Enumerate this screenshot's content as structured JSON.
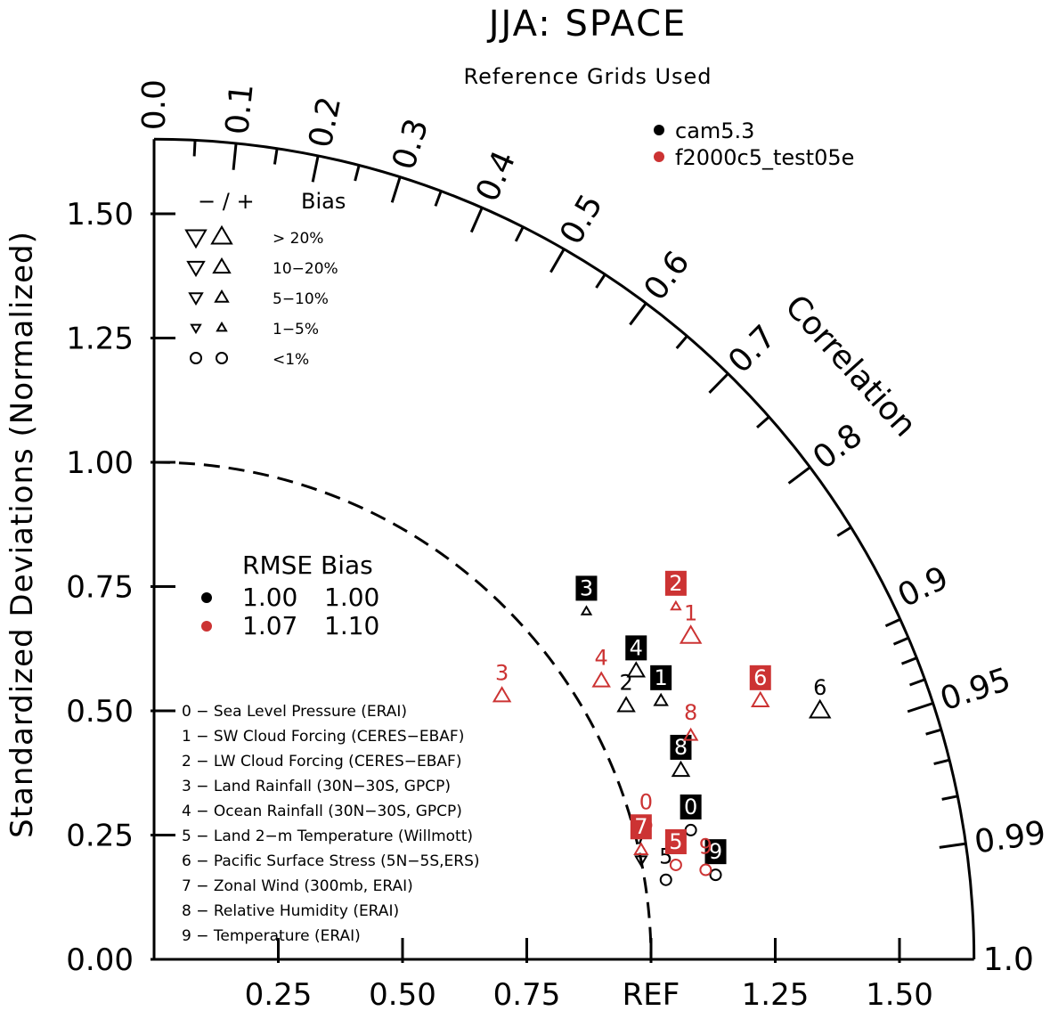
{
  "title": "JJA: SPACE",
  "subtitle": "Reference Grids Used",
  "colors": {
    "black": "#000000",
    "red": "#cc3333"
  },
  "ylabel": "Standardized Deviations (Normalized)",
  "y_ticks": [
    "0.00",
    "0.25",
    "0.50",
    "0.75",
    "1.00",
    "1.25",
    "1.50"
  ],
  "x_ticks": [
    "0.25",
    "0.50",
    "0.75",
    "REF",
    "1.25",
    "1.50"
  ],
  "correlation_label": "Correlation",
  "corr_labels": [
    {
      "r": 0.0,
      "text": "0.0"
    },
    {
      "r": 0.1,
      "text": "0.1"
    },
    {
      "r": 0.2,
      "text": "0.2"
    },
    {
      "r": 0.3,
      "text": "0.3"
    },
    {
      "r": 0.4,
      "text": "0.4"
    },
    {
      "r": 0.5,
      "text": "0.5"
    },
    {
      "r": 0.6,
      "text": "0.6"
    },
    {
      "r": 0.7,
      "text": "0.7"
    },
    {
      "r": 0.8,
      "text": "0.8"
    },
    {
      "r": 0.9,
      "text": "0.9"
    },
    {
      "r": 0.95,
      "text": "0.95"
    },
    {
      "r": 0.99,
      "text": "0.99"
    },
    {
      "r": 1.0,
      "text": "1.0"
    }
  ],
  "model_legend": [
    {
      "name": "cam5.3",
      "color": "#000000"
    },
    {
      "name": "f2000c5_test05e",
      "color": "#cc3333"
    }
  ],
  "bias_legend": {
    "header": "− / +",
    "header_label": "Bias",
    "rows": [
      "> 20%",
      "10−20%",
      "5−10%",
      "1−5%",
      "<1%"
    ]
  },
  "rmse_table": {
    "header": "RMSE Bias",
    "rows": [
      {
        "color": "#000000",
        "rmse": "1.00",
        "bias": "1.00"
      },
      {
        "color": "#cc3333",
        "rmse": "1.07",
        "bias": "1.10"
      }
    ]
  },
  "variable_legend": [
    "0 − Sea Level Pressure (ERAI)",
    "1 − SW Cloud Forcing (CERES−EBAF)",
    "2 − LW Cloud Forcing (CERES−EBAF)",
    "3 − Land Rainfall (30N−30S, GPCP)",
    "4 − Ocean Rainfall (30N−30S, GPCP)",
    "5 − Land 2−m Temperature (Willmott)",
    "6 − Pacific Surface Stress (5N−5S,ERS)",
    "7 − Zonal Wind (300mb, ERAI)",
    "8 − Relative Humidity (ERAI)",
    "9 − Temperature (ERAI)"
  ],
  "chart_data": {
    "type": "scatter",
    "title": "JJA: SPACE",
    "subtitle": "Reference Grids Used",
    "ylabel": "Standardized Deviations (Normalized)",
    "xlim": [
      0,
      1.65
    ],
    "ylim": [
      0,
      1.65
    ],
    "x_ticks": [
      0.25,
      0.5,
      0.75,
      1.0,
      1.25,
      1.5
    ],
    "y_ticks": [
      0,
      0.25,
      0.5,
      0.75,
      1.0,
      1.25,
      1.5
    ],
    "ref_arc_radius": 1.0,
    "series": [
      {
        "name": "cam5.3",
        "color": "#000000",
        "points": [
          {
            "id": "0",
            "x": 1.08,
            "y": 0.26,
            "marker": "circle",
            "boxed": true
          },
          {
            "id": "1",
            "x": 1.02,
            "y": 0.52,
            "marker": "tri-up-small",
            "boxed": true
          },
          {
            "id": "2",
            "x": 0.95,
            "y": 0.51,
            "marker": "tri-up",
            "boxed": false
          },
          {
            "id": "3",
            "x": 0.87,
            "y": 0.7,
            "marker": "tri-up-tiny",
            "boxed": true
          },
          {
            "id": "4",
            "x": 0.97,
            "y": 0.58,
            "marker": "tri-up",
            "boxed": true
          },
          {
            "id": "5",
            "x": 1.03,
            "y": 0.16,
            "marker": "circle",
            "boxed": false
          },
          {
            "id": "6",
            "x": 1.34,
            "y": 0.5,
            "marker": "tri-up-large",
            "boxed": false
          },
          {
            "id": "7",
            "x": 0.98,
            "y": 0.2,
            "marker": "tri-down-small",
            "boxed": false
          },
          {
            "id": "8",
            "x": 1.06,
            "y": 0.38,
            "marker": "tri-up",
            "boxed": true
          },
          {
            "id": "9",
            "x": 1.13,
            "y": 0.17,
            "marker": "circle",
            "boxed": true
          }
        ]
      },
      {
        "name": "f2000c5_test05e",
        "color": "#cc3333",
        "points": [
          {
            "id": "0",
            "x": 0.99,
            "y": 0.27,
            "marker": "circle",
            "boxed": false
          },
          {
            "id": "1",
            "x": 1.08,
            "y": 0.65,
            "marker": "tri-up-large",
            "boxed": false
          },
          {
            "id": "2",
            "x": 1.05,
            "y": 0.71,
            "marker": "tri-up-tiny",
            "boxed": true
          },
          {
            "id": "3",
            "x": 0.7,
            "y": 0.53,
            "marker": "tri-up",
            "boxed": false
          },
          {
            "id": "4",
            "x": 0.9,
            "y": 0.56,
            "marker": "tri-up",
            "boxed": false
          },
          {
            "id": "5",
            "x": 1.05,
            "y": 0.19,
            "marker": "circle",
            "boxed": true
          },
          {
            "id": "6",
            "x": 1.22,
            "y": 0.52,
            "marker": "tri-up",
            "boxed": true
          },
          {
            "id": "7",
            "x": 0.98,
            "y": 0.22,
            "marker": "tri-up-small",
            "boxed": true
          },
          {
            "id": "8",
            "x": 1.08,
            "y": 0.45,
            "marker": "tri-up-small",
            "boxed": false
          },
          {
            "id": "9",
            "x": 1.11,
            "y": 0.18,
            "marker": "circle",
            "boxed": false
          }
        ]
      }
    ]
  }
}
